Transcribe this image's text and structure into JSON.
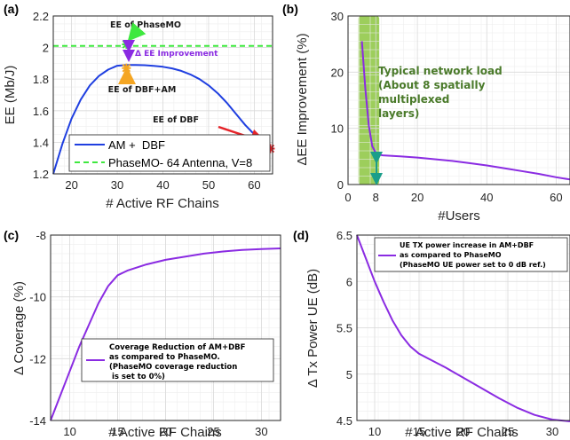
{
  "colors": {
    "blue_curve": "#1f3fe0",
    "green_dashed": "#3fe83f",
    "purple_curve": "#8a2be2",
    "red": "#e5242a",
    "orange": "#f5a623",
    "purple_arrow": "#8a2be2",
    "teal_arrow": "#1a9e8a",
    "shade_green": "#8cc63f",
    "annotation_green": "#4a7a2a"
  },
  "chart_data": [
    {
      "type": "line",
      "panel_label": "(a)",
      "xlabel": "# Active RF Chains",
      "ylabel": "EE (Mb/J)",
      "xlim": [
        16,
        64
      ],
      "ylim": [
        1.2,
        2.2
      ],
      "xticks": [
        "20",
        "30",
        "40",
        "50",
        "60"
      ],
      "xtick_values": [
        20,
        30,
        40,
        50,
        60
      ],
      "yticks": [
        "1.2",
        "1.4",
        "1.6",
        "1.8",
        "2",
        "2.2"
      ],
      "ytick_values": [
        1.2,
        1.4,
        1.6,
        1.8,
        2.0,
        2.2
      ],
      "grid": true,
      "legend_placement": "lower-right",
      "series": [
        {
          "name": "AM +  DBF",
          "x": [
            16,
            18,
            20,
            22,
            24,
            26,
            28,
            30,
            32,
            34,
            36,
            38,
            40,
            42,
            44,
            46,
            48,
            50,
            52,
            54,
            56,
            58,
            60,
            62,
            63.5
          ],
          "values": [
            1.2,
            1.39,
            1.55,
            1.67,
            1.76,
            1.82,
            1.86,
            1.885,
            1.89,
            1.89,
            1.888,
            1.884,
            1.878,
            1.868,
            1.852,
            1.83,
            1.8,
            1.76,
            1.71,
            1.65,
            1.58,
            1.51,
            1.45,
            1.39,
            1.36
          ]
        },
        {
          "name": "PhaseMO- 64 Antenna, V=8",
          "x": [
            16,
            64
          ],
          "values": [
            2.01,
            2.01
          ]
        }
      ],
      "markers": [
        {
          "label": "EE of PhaseMO",
          "x": 32,
          "y": 2.02
        },
        {
          "label": "EE of DBF+AM",
          "x": 32,
          "y": 1.87
        },
        {
          "label": "EE of DBF",
          "x": 63.5,
          "y": 1.36
        }
      ],
      "annotations": [
        "EE of PhaseMO",
        "Δ EE Improvement",
        "EE of DBF+AM",
        "EE of DBF"
      ]
    },
    {
      "type": "line",
      "panel_label": "(b)",
      "xlabel": "#Users",
      "ylabel": "ΔEE Improvement (%)",
      "xlim": [
        0,
        64
      ],
      "ylim": [
        0,
        30
      ],
      "xticks": [
        "0",
        "8",
        "20",
        "40",
        "60"
      ],
      "xtick_values": [
        0,
        8,
        20,
        40,
        60
      ],
      "yticks": [
        "0",
        "10",
        "20",
        "30"
      ],
      "ytick_values": [
        0,
        10,
        20,
        30
      ],
      "grid": true,
      "shaded_region_x": [
        3,
        9
      ],
      "series": [
        {
          "name": "",
          "x": [
            4,
            5,
            6,
            7,
            8,
            9,
            10,
            15,
            20,
            25,
            30,
            35,
            40,
            45,
            50,
            55,
            60,
            64
          ],
          "values": [
            25.5,
            17,
            10.5,
            6.8,
            5.6,
            5.3,
            5.2,
            5.0,
            4.8,
            4.5,
            4.2,
            3.8,
            3.4,
            2.9,
            2.4,
            1.9,
            1.3,
            0.9
          ]
        }
      ],
      "annotations": [
        "Typical network load",
        "(About 8 spatially",
        "multiplexed",
        "layers)"
      ]
    },
    {
      "type": "line",
      "panel_label": "(c)",
      "xlabel": "# Active RF Chains",
      "ylabel": "Δ Coverage (%)",
      "xlim": [
        8,
        32
      ],
      "ylim": [
        -14,
        -8
      ],
      "xticks": [
        "10",
        "15",
        "20",
        "25",
        "30"
      ],
      "xtick_values": [
        10,
        15,
        20,
        25,
        30
      ],
      "yticks": [
        "-8",
        "-10",
        "-12",
        "-14"
      ],
      "ytick_values": [
        -8,
        -10,
        -12,
        -14
      ],
      "grid": true,
      "legend_placement": "lower-right",
      "series": [
        {
          "name": "Coverage Reduction of AM+DBF as compared to PhaseMO. (PhaseMO coverage reduction is set to 0%)",
          "x": [
            8,
            9,
            10,
            11,
            12,
            13,
            14,
            15,
            16,
            18,
            20,
            22,
            24,
            26,
            28,
            30,
            32
          ],
          "values": [
            -14,
            -13.2,
            -12.4,
            -11.6,
            -10.9,
            -10.2,
            -9.65,
            -9.3,
            -9.15,
            -8.95,
            -8.8,
            -8.7,
            -8.6,
            -8.53,
            -8.48,
            -8.45,
            -8.43
          ]
        }
      ],
      "legend_lines": [
        "Coverage Reduction of AM+DBF",
        "as compared to PhaseMO.",
        "(PhaseMO coverage reduction",
        " is set to 0%)"
      ]
    },
    {
      "type": "line",
      "panel_label": "(d)",
      "xlabel": "# Active RF Chains",
      "ylabel": "Δ Tx Power UE (dB)",
      "xlim": [
        8,
        32
      ],
      "ylim": [
        4.5,
        6.5
      ],
      "xticks": [
        "10",
        "15",
        "20",
        "25",
        "30"
      ],
      "xtick_values": [
        10,
        15,
        20,
        25,
        30
      ],
      "yticks": [
        "4.5",
        "5",
        "5.5",
        "6",
        "6.5"
      ],
      "ytick_values": [
        4.5,
        5.0,
        5.5,
        6.0,
        6.5
      ],
      "grid": true,
      "legend_placement": "top-right",
      "series": [
        {
          "name": "UE TX power increase in AM+DBF as compared to PhaseMO (PhaseMO UE power set to 0 dB ref.)",
          "x": [
            8,
            9,
            10,
            11,
            12,
            13,
            14,
            15,
            16,
            18,
            20,
            22,
            24,
            26,
            28,
            30,
            32
          ],
          "values": [
            6.5,
            6.25,
            6.0,
            5.78,
            5.58,
            5.42,
            5.3,
            5.22,
            5.17,
            5.07,
            4.96,
            4.85,
            4.74,
            4.64,
            4.56,
            4.51,
            4.49
          ]
        }
      ],
      "legend_lines": [
        "UE TX power increase in AM+DBF",
        "as compared to PhaseMO",
        "(PhaseMO UE power set to 0 dB ref.)"
      ]
    }
  ]
}
